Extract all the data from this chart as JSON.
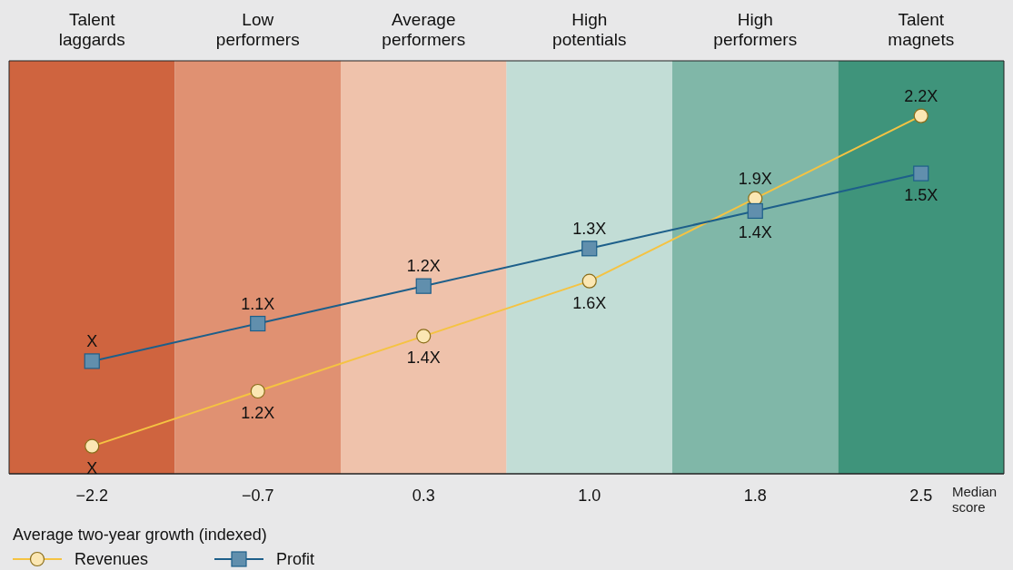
{
  "chart_data": {
    "type": "line",
    "categories": [
      "−2.2",
      "−0.7",
      "0.3",
      "1.0",
      "1.8",
      "2.5"
    ],
    "xlabel": "Median score",
    "legend_title": "Average two-year growth (indexed)",
    "legend": "bottom left",
    "tick_labels": "x",
    "ylim": [
      0.9,
      2.4
    ],
    "y2lim": [
      0.7,
      1.8
    ],
    "series": [
      {
        "name": "Revenues",
        "color": "#f5c342",
        "marker": "circle",
        "values": [
          1.0,
          1.2,
          1.4,
          1.6,
          1.9,
          2.2
        ],
        "value_labels": [
          "X",
          "1.2X",
          "1.4X",
          "1.6X",
          "1.9X",
          "2.2X"
        ]
      },
      {
        "name": "Profit",
        "color": "#1d5f8a",
        "marker": "square",
        "axis": "y2",
        "values": [
          1.0,
          1.1,
          1.2,
          1.3,
          1.4,
          1.5
        ],
        "value_labels": [
          "X",
          "1.1X",
          "1.2X",
          "1.3X",
          "1.4X",
          "1.5X"
        ]
      }
    ],
    "bands": [
      {
        "axis": "x",
        "from": "−2.2",
        "to": "−2.2",
        "label": "Talent laggards",
        "color": "#cf643f"
      },
      {
        "axis": "x",
        "from": "−0.7",
        "to": "−0.7",
        "label": "Low performers",
        "color": "#e09172"
      },
      {
        "axis": "x",
        "from": "0.3",
        "to": "0.3",
        "label": "Average performers",
        "color": "#efc2ab"
      },
      {
        "axis": "x",
        "from": "1.0",
        "to": "1.0",
        "label": "High potentials",
        "color": "#c2ddd6"
      },
      {
        "axis": "x",
        "from": "1.8",
        "to": "1.8",
        "label": "High performers",
        "color": "#80b7a8"
      },
      {
        "axis": "x",
        "from": "2.5",
        "to": "2.5",
        "label": "Talent magnets",
        "color": "#3f947b"
      }
    ]
  }
}
